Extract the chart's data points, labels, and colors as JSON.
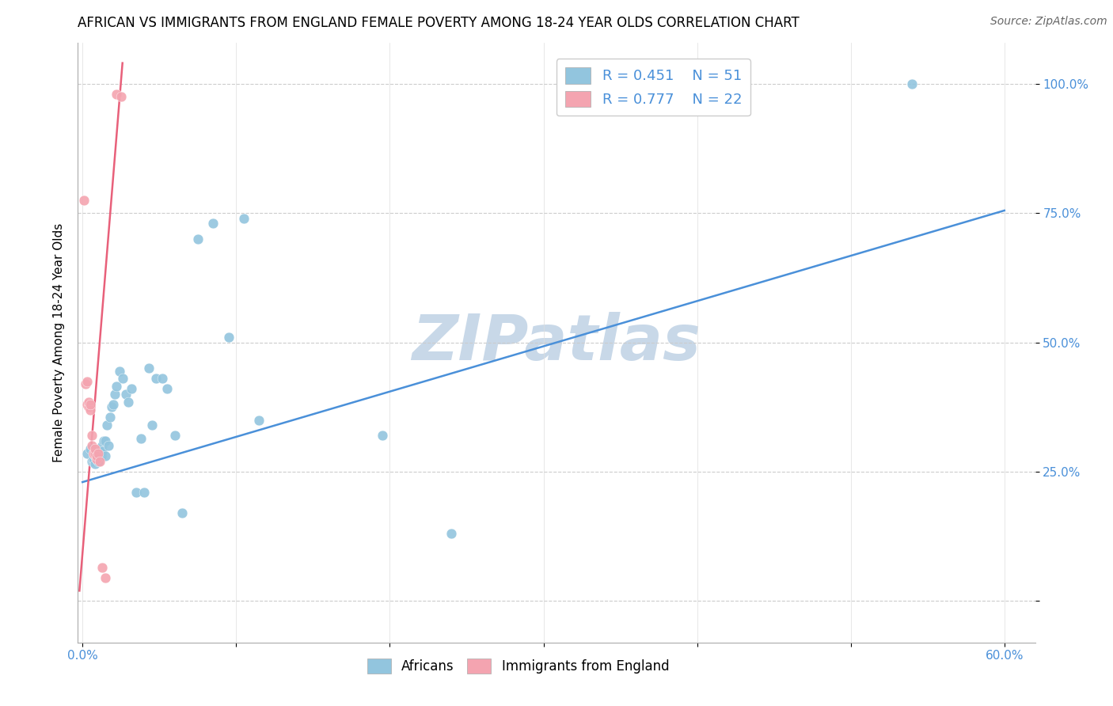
{
  "title": "AFRICAN VS IMMIGRANTS FROM ENGLAND FEMALE POVERTY AMONG 18-24 YEAR OLDS CORRELATION CHART",
  "source": "Source: ZipAtlas.com",
  "ylabel": "Female Poverty Among 18-24 Year Olds",
  "x_ticks_labels": [
    "0.0%",
    "",
    "",
    "",
    "",
    "",
    "60.0%"
  ],
  "x_tick_vals": [
    0.0,
    0.1,
    0.2,
    0.3,
    0.4,
    0.5,
    0.6
  ],
  "y_ticks_labels": [
    "100.0%",
    "75.0%",
    "50.0%",
    "25.0%",
    ""
  ],
  "y_tick_vals": [
    1.0,
    0.75,
    0.5,
    0.25,
    0.0
  ],
  "xlim": [
    -0.003,
    0.62
  ],
  "ylim": [
    -0.08,
    1.08
  ],
  "legend_r_blue": "R = 0.451",
  "legend_n_blue": "N = 51",
  "legend_r_pink": "R = 0.777",
  "legend_n_pink": "N = 22",
  "blue_color": "#92C5DE",
  "pink_color": "#F4A4B0",
  "trendline_blue_color": "#4a90d9",
  "trendline_pink_color": "#e8607a",
  "watermark_color": "#c8d8e8",
  "title_fontsize": 12,
  "axis_label_fontsize": 11,
  "tick_fontsize": 11,
  "source_fontsize": 10,
  "blue_scatter_x": [
    0.003,
    0.005,
    0.006,
    0.007,
    0.007,
    0.008,
    0.008,
    0.008,
    0.009,
    0.009,
    0.01,
    0.01,
    0.011,
    0.011,
    0.012,
    0.012,
    0.013,
    0.013,
    0.014,
    0.015,
    0.015,
    0.016,
    0.017,
    0.018,
    0.019,
    0.02,
    0.021,
    0.022,
    0.024,
    0.026,
    0.028,
    0.03,
    0.032,
    0.035,
    0.038,
    0.04,
    0.043,
    0.045,
    0.048,
    0.052,
    0.055,
    0.06,
    0.065,
    0.075,
    0.085,
    0.095,
    0.105,
    0.115,
    0.195,
    0.24,
    0.54
  ],
  "blue_scatter_y": [
    0.285,
    0.295,
    0.27,
    0.27,
    0.275,
    0.28,
    0.265,
    0.28,
    0.275,
    0.285,
    0.27,
    0.28,
    0.285,
    0.295,
    0.28,
    0.295,
    0.3,
    0.29,
    0.31,
    0.28,
    0.31,
    0.34,
    0.3,
    0.355,
    0.375,
    0.38,
    0.4,
    0.415,
    0.445,
    0.43,
    0.4,
    0.385,
    0.41,
    0.21,
    0.315,
    0.21,
    0.45,
    0.34,
    0.43,
    0.43,
    0.41,
    0.32,
    0.17,
    0.7,
    0.73,
    0.51,
    0.74,
    0.35,
    0.32,
    0.13,
    1.0
  ],
  "pink_scatter_x": [
    0.001,
    0.002,
    0.003,
    0.003,
    0.004,
    0.004,
    0.005,
    0.005,
    0.006,
    0.006,
    0.007,
    0.007,
    0.008,
    0.008,
    0.009,
    0.009,
    0.01,
    0.011,
    0.013,
    0.015,
    0.022,
    0.025
  ],
  "pink_scatter_y": [
    0.775,
    0.42,
    0.425,
    0.38,
    0.375,
    0.385,
    0.37,
    0.38,
    0.32,
    0.3,
    0.285,
    0.285,
    0.285,
    0.295,
    0.275,
    0.28,
    0.285,
    0.27,
    0.065,
    0.045,
    0.98,
    0.975
  ],
  "blue_trend_x": [
    0.0,
    0.6
  ],
  "blue_trend_y": [
    0.23,
    0.755
  ],
  "pink_trend_x": [
    -0.002,
    0.026
  ],
  "pink_trend_y": [
    0.02,
    1.04
  ]
}
